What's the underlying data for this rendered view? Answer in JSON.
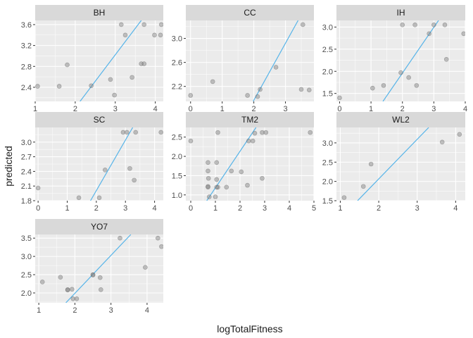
{
  "chart_data": {
    "type": "scatter",
    "xlabel": "logTotalFitness",
    "ylabel": "predicted",
    "colors": {
      "points": "#7f7f7f",
      "fit_line": "#56B4E9",
      "panel_background": "#ebebeb",
      "strip_background": "#d9d9d9"
    },
    "facets": [
      {
        "name": "BH",
        "xlim": [
          1.0,
          4.2
        ],
        "ylim": [
          2.13,
          3.68
        ],
        "x_ticks": [
          1,
          2,
          3,
          4
        ],
        "y_ticks": [
          2.4,
          2.8,
          3.2,
          3.6
        ],
        "x_tick_labels": [
          "1",
          "2",
          "3",
          "4"
        ],
        "y_tick_labels": [
          "2.4",
          "2.8",
          "3.2",
          "3.6"
        ],
        "points": [
          [
            1.06,
            2.42
          ],
          [
            1.6,
            2.42
          ],
          [
            1.8,
            2.83
          ],
          [
            2.4,
            2.43
          ],
          [
            2.88,
            2.55
          ],
          [
            2.98,
            2.25
          ],
          [
            3.15,
            3.6
          ],
          [
            3.25,
            3.4
          ],
          [
            3.42,
            2.59
          ],
          [
            3.65,
            2.85
          ],
          [
            3.72,
            2.85
          ],
          [
            3.72,
            3.6
          ],
          [
            3.98,
            3.4
          ],
          [
            4.13,
            3.4
          ],
          [
            4.15,
            3.6
          ]
        ],
        "fit_line": [
          [
            2.12,
            2.13
          ],
          [
            3.65,
            3.68
          ]
        ]
      },
      {
        "name": "CC",
        "xlim": [
          -0.15,
          3.9
        ],
        "ylim": [
          1.95,
          3.3
        ],
        "x_ticks": [
          0,
          1,
          2,
          3
        ],
        "y_ticks": [
          2.2,
          2.6,
          3.0
        ],
        "x_tick_labels": [
          "0",
          "1",
          "2",
          "3"
        ],
        "y_tick_labels": [
          "2.2",
          "2.6",
          "3.0"
        ],
        "points": [
          [
            0.0,
            2.05
          ],
          [
            0.7,
            2.28
          ],
          [
            1.8,
            2.05
          ],
          [
            2.12,
            2.03
          ],
          [
            2.2,
            2.15
          ],
          [
            2.7,
            2.52
          ],
          [
            3.5,
            2.15
          ],
          [
            3.55,
            3.23
          ],
          [
            3.75,
            2.14
          ]
        ],
        "fit_line": [
          [
            1.98,
            1.95
          ],
          [
            3.4,
            3.3
          ]
        ]
      },
      {
        "name": "IH",
        "xlim": [
          -0.1,
          4.0
        ],
        "ylim": [
          1.32,
          3.15
        ],
        "x_ticks": [
          0,
          1,
          2,
          3,
          4
        ],
        "y_ticks": [
          1.5,
          2.0,
          2.5,
          3.0
        ],
        "x_tick_labels": [
          "0",
          "1",
          "2",
          "3",
          "4"
        ],
        "y_tick_labels": [
          "1.5",
          "2.0",
          "2.5",
          "3.0"
        ],
        "points": [
          [
            0.0,
            1.4
          ],
          [
            1.05,
            1.62
          ],
          [
            1.4,
            1.68
          ],
          [
            1.95,
            1.97
          ],
          [
            2.0,
            3.05
          ],
          [
            2.2,
            1.86
          ],
          [
            2.4,
            3.05
          ],
          [
            2.45,
            1.68
          ],
          [
            2.85,
            2.85
          ],
          [
            3.0,
            3.05
          ],
          [
            3.35,
            3.05
          ],
          [
            3.4,
            2.27
          ],
          [
            3.95,
            2.85
          ]
        ],
        "fit_line": [
          [
            1.38,
            1.32
          ],
          [
            3.15,
            3.15
          ]
        ]
      },
      {
        "name": "SC",
        "xlim": [
          -0.1,
          4.3
        ],
        "ylim": [
          1.8,
          3.3
        ],
        "x_ticks": [
          0,
          1,
          2,
          3,
          4
        ],
        "y_ticks": [
          1.8,
          2.1,
          2.4,
          2.7,
          3.0
        ],
        "x_tick_labels": [
          "0",
          "1",
          "2",
          "3",
          "4"
        ],
        "y_tick_labels": [
          "1.8",
          "2.1",
          "2.4",
          "2.7",
          "3.0"
        ],
        "points": [
          [
            0.0,
            2.06
          ],
          [
            1.4,
            1.86
          ],
          [
            2.1,
            1.86
          ],
          [
            2.3,
            2.43
          ],
          [
            2.92,
            3.2
          ],
          [
            3.05,
            3.2
          ],
          [
            3.15,
            2.46
          ],
          [
            3.3,
            2.22
          ],
          [
            3.35,
            3.2
          ],
          [
            4.22,
            3.2
          ]
        ],
        "fit_line": [
          [
            1.8,
            1.8
          ],
          [
            3.25,
            3.3
          ]
        ]
      },
      {
        "name": "TM2",
        "xlim": [
          -0.2,
          5.0
        ],
        "ylim": [
          0.85,
          2.75
        ],
        "x_ticks": [
          0,
          1,
          2,
          3,
          4,
          5
        ],
        "y_ticks": [
          1.0,
          1.5,
          2.0,
          2.5
        ],
        "x_tick_labels": [
          "0",
          "1",
          "2",
          "3",
          "4",
          "5"
        ],
        "y_tick_labels": [
          "1.0",
          "1.5",
          "2.0",
          "2.5"
        ],
        "points": [
          [
            0.0,
            2.4
          ],
          [
            0.7,
            1.84
          ],
          [
            0.7,
            1.62
          ],
          [
            0.72,
            1.43
          ],
          [
            0.7,
            1.22
          ],
          [
            0.7,
            1.2
          ],
          [
            0.75,
            0.95
          ],
          [
            1.05,
            1.84
          ],
          [
            1.05,
            1.4
          ],
          [
            1.1,
            1.2
          ],
          [
            1.05,
            1.2
          ],
          [
            1.1,
            2.62
          ],
          [
            1.0,
            0.95
          ],
          [
            1.45,
            1.2
          ],
          [
            1.65,
            1.62
          ],
          [
            2.05,
            1.6
          ],
          [
            2.35,
            2.4
          ],
          [
            2.3,
            1.25
          ],
          [
            2.52,
            2.4
          ],
          [
            2.6,
            2.6
          ],
          [
            2.9,
            1.43
          ],
          [
            2.9,
            2.62
          ],
          [
            3.05,
            2.62
          ],
          [
            4.85,
            2.62
          ]
        ],
        "fit_line": [
          [
            0.65,
            0.85
          ],
          [
            2.65,
            2.75
          ]
        ]
      },
      {
        "name": "WL2",
        "xlim": [
          0.9,
          4.25
        ],
        "ylim": [
          1.5,
          3.4
        ],
        "x_ticks": [
          1,
          2,
          3,
          4
        ],
        "y_ticks": [
          1.5,
          2.0,
          2.5,
          3.0
        ],
        "x_tick_labels": [
          "1",
          "2",
          "3",
          "4"
        ],
        "y_tick_labels": [
          "1.5",
          "2.0",
          "2.5",
          "3.0"
        ],
        "points": [
          [
            1.1,
            1.58
          ],
          [
            1.6,
            1.87
          ],
          [
            1.8,
            2.45
          ],
          [
            3.65,
            3.02
          ],
          [
            4.1,
            3.22
          ]
        ],
        "fit_line": [
          [
            1.45,
            1.5
          ],
          [
            3.3,
            3.4
          ]
        ]
      },
      {
        "name": "YO7",
        "xlim": [
          0.9,
          4.45
        ],
        "ylim": [
          1.73,
          3.6
        ],
        "x_ticks": [
          1,
          2,
          3,
          4
        ],
        "y_ticks": [
          2.0,
          2.5,
          3.0,
          3.5
        ],
        "x_tick_labels": [
          "1",
          "2",
          "3",
          "4"
        ],
        "y_tick_labels": [
          "2.0",
          "2.5",
          "3.0",
          "3.5"
        ],
        "points": [
          [
            1.1,
            2.3
          ],
          [
            1.6,
            2.43
          ],
          [
            1.8,
            2.09
          ],
          [
            1.8,
            2.08
          ],
          [
            1.92,
            2.1
          ],
          [
            1.95,
            1.84
          ],
          [
            2.05,
            1.84
          ],
          [
            2.5,
            2.5
          ],
          [
            2.5,
            2.49
          ],
          [
            2.7,
            2.42
          ],
          [
            2.72,
            2.09
          ],
          [
            3.25,
            3.5
          ],
          [
            3.95,
            2.7
          ],
          [
            4.3,
            3.5
          ],
          [
            4.4,
            3.27
          ]
        ],
        "fit_line": [
          [
            1.75,
            1.73
          ],
          [
            3.55,
            3.6
          ]
        ]
      }
    ]
  }
}
